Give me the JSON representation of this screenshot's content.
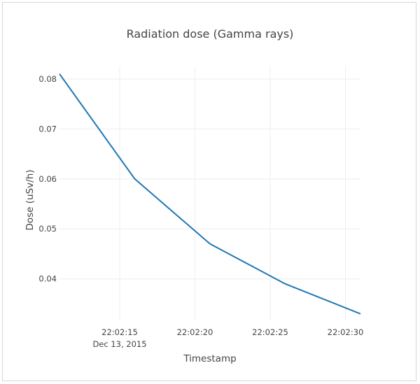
{
  "chart_data": {
    "type": "line",
    "title": "Radiation dose (Gamma rays)",
    "xlabel": "Timestamp",
    "ylabel": "Dose (uSv/h)",
    "x_ticks": [
      "22:02:15",
      "22:02:20",
      "22:02:25",
      "22:02:30"
    ],
    "x_tick_sublabel": "Dec 13, 2015",
    "y_ticks": [
      "0.04",
      "0.05",
      "0.06",
      "0.07",
      "0.08"
    ],
    "x_range": [
      "2015-12-13 22:02:11",
      "2015-12-13 22:02:31"
    ],
    "ylim": [
      0.0317,
      0.0825
    ],
    "grid": true,
    "series": [
      {
        "color": "#1f77b4",
        "x": [
          "2015-12-13 22:02:11",
          "2015-12-13 22:02:16",
          "2015-12-13 22:02:21",
          "2015-12-13 22:02:26",
          "2015-12-13 22:02:31"
        ],
        "y": [
          0.081,
          0.06,
          0.047,
          0.039,
          0.033
        ]
      }
    ]
  }
}
